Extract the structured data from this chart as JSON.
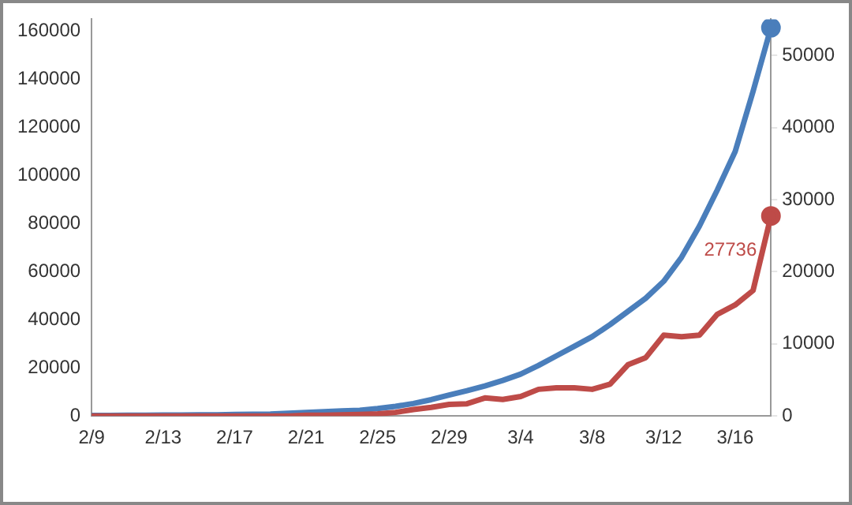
{
  "chart_data": {
    "type": "line",
    "categories": [
      "2/9",
      null,
      null,
      null,
      "2/13",
      null,
      null,
      null,
      "2/17",
      null,
      null,
      null,
      "2/21",
      null,
      null,
      null,
      "2/25",
      null,
      null,
      null,
      "2/29",
      null,
      null,
      null,
      "3/4",
      null,
      null,
      null,
      "3/8",
      null,
      null,
      null,
      "3/12",
      null,
      null,
      null,
      "3/16",
      null,
      null
    ],
    "series": [
      {
        "color": "#4a7ebb",
        "values": [
          200,
          200,
          300,
          300,
          400,
          400,
          500,
          500,
          600,
          700,
          800,
          1100,
          1500,
          1800,
          2100,
          2400,
          3100,
          4000,
          5200,
          6800,
          8700,
          10500,
          12500,
          14800,
          17400,
          21000,
          25000,
          29000,
          33000,
          38000,
          43500,
          49000,
          56000,
          66000,
          79000,
          94000,
          110000,
          135000,
          161500
        ]
      },
      {
        "color": "#be4b48",
        "axis": "y2",
        "values": [
          0,
          0,
          0,
          0,
          0,
          0,
          0,
          0,
          0,
          0,
          0,
          0,
          100,
          100,
          150,
          200,
          300,
          500,
          900,
          1200,
          1600,
          1700,
          2500,
          2300,
          2700,
          3700,
          3900,
          3900,
          3700,
          4400,
          7100,
          8100,
          11200,
          11000,
          11200,
          14100,
          15400,
          17400,
          27736
        ],
        "value_labels": [
          null,
          null,
          null,
          null,
          null,
          null,
          null,
          null,
          null,
          null,
          null,
          null,
          null,
          null,
          null,
          null,
          null,
          null,
          null,
          null,
          null,
          null,
          null,
          null,
          null,
          null,
          null,
          null,
          null,
          null,
          null,
          null,
          null,
          null,
          null,
          null,
          null,
          null,
          "27736"
        ]
      }
    ],
    "ylim": [
      0,
      165000
    ],
    "yticks": [
      0,
      20000,
      40000,
      60000,
      80000,
      100000,
      120000,
      140000,
      160000
    ],
    "y2lim": [
      0,
      55000
    ],
    "y2ticks": [
      0,
      10000,
      20000,
      30000,
      40000,
      50000
    ],
    "grid": false,
    "legend": false,
    "marker": "none",
    "line_style": "solid"
  }
}
